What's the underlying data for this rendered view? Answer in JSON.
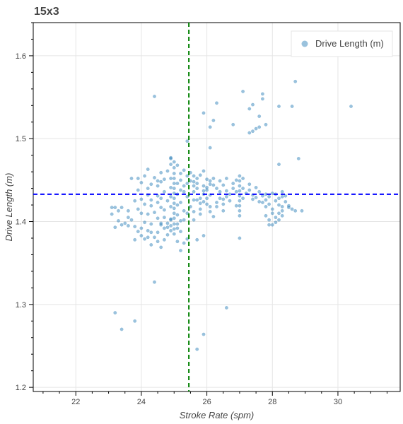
{
  "chart_data": {
    "type": "scatter",
    "title": "15x3",
    "xlabel": "Stroke Rate (spm)",
    "ylabel": "Drive Length (m)",
    "xlim": [
      20.7,
      31.9
    ],
    "ylim": [
      1.195,
      1.64
    ],
    "x_ticks": [
      22,
      24,
      26,
      28,
      30
    ],
    "y_ticks": [
      1.2,
      1.3,
      1.4,
      1.5,
      1.6
    ],
    "grid": true,
    "legend": {
      "position": "top-right",
      "entries": [
        {
          "label": "Drive Length (m)",
          "color": "#1f77b4"
        }
      ]
    },
    "reference_lines": [
      {
        "orientation": "horizontal",
        "value": 1.433,
        "color": "#0000ff",
        "style": "dashed"
      },
      {
        "orientation": "vertical",
        "value": 25.45,
        "color": "#008000",
        "style": "dashed"
      }
    ],
    "series": [
      {
        "name": "Drive Length (m)",
        "color": "#1f77b4",
        "points": [
          [
            24.4,
            1.551
          ],
          [
            28.7,
            1.569
          ],
          [
            27.1,
            1.557
          ],
          [
            27.7,
            1.554
          ],
          [
            27.7,
            1.548
          ],
          [
            27.4,
            1.541
          ],
          [
            26.3,
            1.543
          ],
          [
            27.3,
            1.536
          ],
          [
            28.2,
            1.539
          ],
          [
            28.6,
            1.539
          ],
          [
            30.4,
            1.539
          ],
          [
            27.6,
            1.527
          ],
          [
            27.8,
            1.517
          ],
          [
            26.1,
            1.514
          ],
          [
            26.2,
            1.522
          ],
          [
            25.9,
            1.531
          ],
          [
            26.8,
            1.517
          ],
          [
            27.4,
            1.509
          ],
          [
            27.5,
            1.512
          ],
          [
            27.6,
            1.514
          ],
          [
            27.3,
            1.507
          ],
          [
            25.4,
            1.497
          ],
          [
            26.1,
            1.489
          ],
          [
            24.9,
            1.477
          ],
          [
            28.8,
            1.476
          ],
          [
            28.2,
            1.469
          ],
          [
            25.1,
            1.468
          ],
          [
            23.1,
            1.417
          ],
          [
            23.2,
            1.417
          ],
          [
            23.1,
            1.409
          ],
          [
            23.3,
            1.413
          ],
          [
            23.4,
            1.417
          ],
          [
            23.6,
            1.413
          ],
          [
            23.2,
            1.393
          ],
          [
            23.4,
            1.396
          ],
          [
            23.6,
            1.395
          ],
          [
            23.8,
            1.394
          ],
          [
            23.6,
            1.405
          ],
          [
            23.7,
            1.452
          ],
          [
            23.9,
            1.452
          ],
          [
            24.3,
            1.445
          ],
          [
            24.5,
            1.449
          ],
          [
            24.6,
            1.459
          ],
          [
            24.8,
            1.461
          ],
          [
            24.2,
            1.432
          ],
          [
            24.5,
            1.431
          ],
          [
            24.1,
            1.421
          ],
          [
            24.3,
            1.419
          ],
          [
            24.6,
            1.417
          ],
          [
            24.0,
            1.41
          ],
          [
            24.2,
            1.409
          ],
          [
            24.4,
            1.411
          ],
          [
            24.7,
            1.405
          ],
          [
            24.9,
            1.403
          ],
          [
            24.1,
            1.399
          ],
          [
            24.3,
            1.397
          ],
          [
            24.6,
            1.396
          ],
          [
            24.8,
            1.393
          ],
          [
            24.0,
            1.392
          ],
          [
            24.2,
            1.389
          ],
          [
            24.5,
            1.387
          ],
          [
            24.8,
            1.384
          ],
          [
            24.1,
            1.379
          ],
          [
            24.4,
            1.381
          ],
          [
            24.7,
            1.378
          ],
          [
            24.3,
            1.372
          ],
          [
            24.6,
            1.369
          ],
          [
            24.4,
            1.327
          ],
          [
            24.9,
            1.469
          ],
          [
            25.0,
            1.465
          ],
          [
            25.0,
            1.458
          ],
          [
            25.0,
            1.452
          ],
          [
            25.0,
            1.446
          ],
          [
            25.0,
            1.44
          ],
          [
            25.0,
            1.434
          ],
          [
            25.0,
            1.428
          ],
          [
            25.0,
            1.422
          ],
          [
            25.0,
            1.416
          ],
          [
            25.0,
            1.41
          ],
          [
            25.0,
            1.404
          ],
          [
            25.0,
            1.397
          ],
          [
            25.0,
            1.391
          ],
          [
            25.0,
            1.385
          ],
          [
            24.9,
            1.452
          ],
          [
            24.9,
            1.441
          ],
          [
            24.9,
            1.43
          ],
          [
            24.9,
            1.418
          ],
          [
            24.9,
            1.402
          ],
          [
            24.9,
            1.395
          ],
          [
            25.1,
            1.446
          ],
          [
            25.1,
            1.433
          ],
          [
            25.1,
            1.42
          ],
          [
            25.1,
            1.408
          ],
          [
            25.1,
            1.392
          ],
          [
            25.2,
            1.45
          ],
          [
            25.3,
            1.443
          ],
          [
            25.3,
            1.436
          ],
          [
            25.4,
            1.446
          ],
          [
            25.4,
            1.455
          ],
          [
            25.5,
            1.449
          ],
          [
            25.6,
            1.443
          ],
          [
            25.2,
            1.423
          ],
          [
            25.3,
            1.413
          ],
          [
            25.3,
            1.402
          ],
          [
            25.2,
            1.388
          ],
          [
            25.1,
            1.376
          ],
          [
            25.3,
            1.374
          ],
          [
            25.4,
            1.379
          ],
          [
            25.2,
            1.365
          ],
          [
            25.9,
            1.461
          ],
          [
            25.8,
            1.456
          ],
          [
            26.0,
            1.451
          ],
          [
            26.1,
            1.449
          ],
          [
            25.7,
            1.446
          ],
          [
            25.9,
            1.443
          ],
          [
            26.0,
            1.438
          ],
          [
            25.7,
            1.44
          ],
          [
            25.6,
            1.436
          ],
          [
            25.9,
            1.433
          ],
          [
            26.1,
            1.432
          ],
          [
            25.8,
            1.428
          ],
          [
            25.9,
            1.424
          ],
          [
            26.0,
            1.421
          ],
          [
            25.7,
            1.426
          ],
          [
            26.2,
            1.444
          ],
          [
            26.3,
            1.44
          ],
          [
            26.4,
            1.436
          ],
          [
            26.6,
            1.43
          ],
          [
            26.5,
            1.421
          ],
          [
            26.7,
            1.425
          ],
          [
            26.5,
            1.444
          ],
          [
            26.8,
            1.446
          ],
          [
            26.6,
            1.452
          ],
          [
            26.3,
            1.418
          ],
          [
            26.5,
            1.413
          ],
          [
            26.1,
            1.412
          ],
          [
            26.2,
            1.406
          ],
          [
            26.7,
            1.433
          ],
          [
            26.9,
            1.436
          ],
          [
            27.0,
            1.455
          ],
          [
            27.0,
            1.449
          ],
          [
            27.0,
            1.443
          ],
          [
            27.0,
            1.437
          ],
          [
            27.0,
            1.431
          ],
          [
            27.0,
            1.425
          ],
          [
            27.0,
            1.419
          ],
          [
            27.0,
            1.413
          ],
          [
            27.0,
            1.407
          ],
          [
            27.1,
            1.452
          ],
          [
            27.1,
            1.44
          ],
          [
            27.1,
            1.428
          ],
          [
            27.2,
            1.434
          ],
          [
            27.3,
            1.438
          ],
          [
            27.4,
            1.432
          ],
          [
            27.5,
            1.429
          ],
          [
            27.6,
            1.436
          ],
          [
            27.7,
            1.431
          ],
          [
            27.8,
            1.433
          ],
          [
            27.9,
            1.43
          ],
          [
            28.0,
            1.434
          ],
          [
            27.7,
            1.423
          ],
          [
            27.8,
            1.418
          ],
          [
            27.9,
            1.421
          ],
          [
            28.0,
            1.415
          ],
          [
            28.1,
            1.425
          ],
          [
            28.2,
            1.428
          ],
          [
            28.2,
            1.42
          ],
          [
            28.3,
            1.418
          ],
          [
            28.3,
            1.43
          ],
          [
            28.0,
            1.41
          ],
          [
            28.1,
            1.405
          ],
          [
            27.9,
            1.402
          ],
          [
            28.0,
            1.396
          ],
          [
            27.8,
            1.407
          ],
          [
            28.2,
            1.41
          ],
          [
            28.3,
            1.413
          ],
          [
            28.5,
            1.417
          ],
          [
            28.7,
            1.413
          ],
          [
            28.9,
            1.413
          ],
          [
            28.4,
            1.424
          ],
          [
            28.3,
            1.407
          ],
          [
            27.0,
            1.38
          ],
          [
            25.9,
            1.383
          ],
          [
            25.6,
            1.402
          ],
          [
            25.7,
            1.378
          ],
          [
            23.2,
            1.29
          ],
          [
            23.8,
            1.28
          ],
          [
            23.4,
            1.27
          ],
          [
            26.6,
            1.296
          ],
          [
            25.9,
            1.264
          ],
          [
            25.7,
            1.246
          ],
          [
            24.7,
            1.451
          ],
          [
            24.5,
            1.443
          ],
          [
            24.6,
            1.428
          ],
          [
            24.7,
            1.414
          ],
          [
            24.8,
            1.425
          ],
          [
            24.5,
            1.423
          ],
          [
            24.7,
            1.436
          ],
          [
            25.2,
            1.458
          ],
          [
            25.3,
            1.462
          ],
          [
            25.5,
            1.459
          ],
          [
            25.6,
            1.455
          ],
          [
            25.2,
            1.438
          ],
          [
            25.4,
            1.43
          ],
          [
            25.6,
            1.426
          ],
          [
            25.5,
            1.418
          ],
          [
            25.4,
            1.41
          ],
          [
            25.6,
            1.412
          ],
          [
            25.8,
            1.415
          ],
          [
            26.4,
            1.428
          ],
          [
            26.6,
            1.437
          ],
          [
            26.8,
            1.44
          ],
          [
            26.9,
            1.419
          ],
          [
            26.4,
            1.449
          ],
          [
            26.2,
            1.452
          ],
          [
            24.9,
            1.476
          ],
          [
            25.0,
            1.472
          ],
          [
            24.2,
            1.463
          ],
          [
            24.1,
            1.455
          ],
          [
            24.0,
            1.447
          ],
          [
            23.9,
            1.438
          ],
          [
            24.4,
            1.453
          ],
          [
            24.6,
            1.448
          ],
          [
            24.2,
            1.44
          ],
          [
            24.3,
            1.426
          ],
          [
            24.0,
            1.427
          ],
          [
            23.8,
            1.425
          ],
          [
            23.9,
            1.415
          ],
          [
            23.7,
            1.402
          ],
          [
            23.5,
            1.398
          ],
          [
            23.3,
            1.401
          ],
          [
            24.5,
            1.404
          ],
          [
            24.7,
            1.392
          ],
          [
            24.9,
            1.389
          ],
          [
            24.5,
            1.376
          ],
          [
            24.2,
            1.381
          ],
          [
            24.0,
            1.383
          ],
          [
            23.9,
            1.388
          ],
          [
            23.8,
            1.378
          ],
          [
            24.3,
            1.387
          ],
          [
            24.6,
            1.398
          ],
          [
            24.8,
            1.398
          ],
          [
            25.1,
            1.397
          ],
          [
            25.2,
            1.401
          ],
          [
            25.6,
            1.448
          ],
          [
            25.7,
            1.452
          ],
          [
            26.1,
            1.445
          ],
          [
            26.0,
            1.428
          ],
          [
            25.8,
            1.422
          ],
          [
            25.9,
            1.437
          ],
          [
            26.0,
            1.441
          ],
          [
            27.4,
            1.427
          ],
          [
            27.6,
            1.424
          ],
          [
            27.8,
            1.426
          ],
          [
            28.1,
            1.433
          ],
          [
            28.3,
            1.436
          ],
          [
            28.4,
            1.431
          ],
          [
            28.5,
            1.419
          ],
          [
            28.6,
            1.415
          ],
          [
            28.1,
            1.399
          ],
          [
            28.2,
            1.402
          ],
          [
            27.9,
            1.396
          ],
          [
            27.5,
            1.441
          ],
          [
            27.3,
            1.445
          ],
          [
            26.9,
            1.45
          ],
          [
            26.5,
            1.427
          ],
          [
            26.3,
            1.423
          ],
          [
            26.1,
            1.418
          ],
          [
            25.8,
            1.409
          ]
        ]
      }
    ]
  }
}
